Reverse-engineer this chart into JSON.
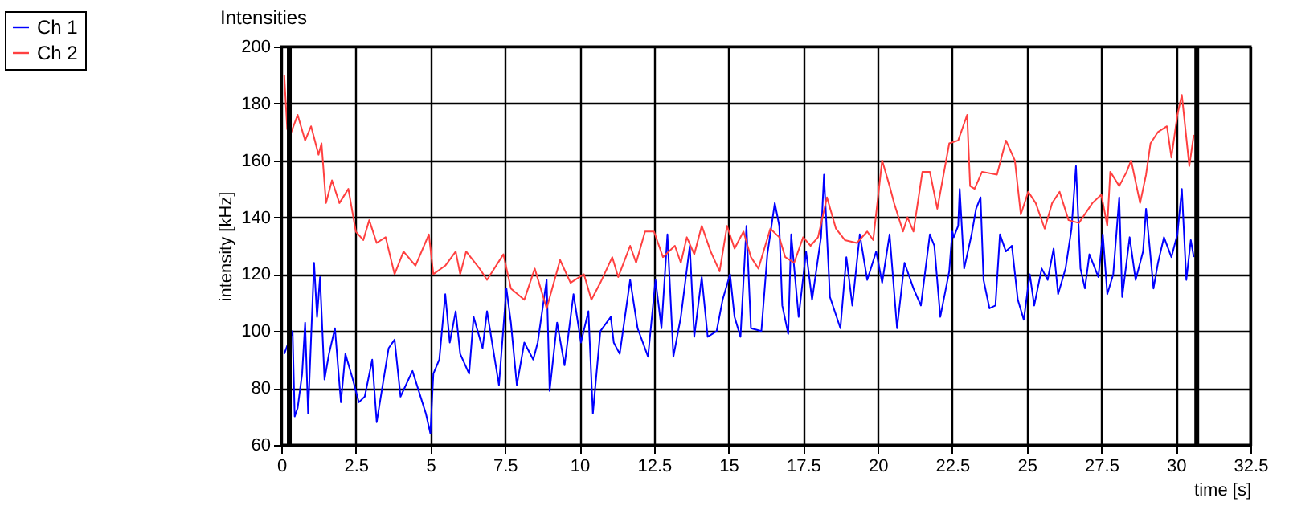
{
  "chart_data": {
    "type": "line",
    "title": "Intensities",
    "xlabel": "time [s]",
    "ylabel": "intensity [kHz]",
    "xlim": [
      0,
      32.5
    ],
    "ylim": [
      60,
      200
    ],
    "xticks": [
      0,
      2.5,
      5,
      7.5,
      10,
      12.5,
      15,
      17.5,
      20,
      22.5,
      25,
      27.5,
      30,
      32.5
    ],
    "yticks": [
      60,
      80,
      100,
      120,
      140,
      160,
      180,
      200
    ],
    "grid": true,
    "legend": "top left",
    "line_style": "solid",
    "ref_lines": [
      {
        "axis": "x",
        "value": 0.27,
        "color": "#000000"
      },
      {
        "axis": "x",
        "value": 30.7,
        "color": "#000000"
      }
    ],
    "series": [
      {
        "name": "Ch 1",
        "color": "#0000ff",
        "x": [
          0.1,
          0.38,
          0.45,
          0.55,
          0.7,
          0.8,
          0.9,
          1.1,
          1.2,
          1.3,
          1.45,
          1.6,
          1.8,
          2.0,
          2.15,
          2.4,
          2.6,
          2.8,
          3.05,
          3.2,
          3.6,
          3.8,
          4.0,
          4.4,
          4.85,
          5.0,
          5.1,
          5.3,
          5.5,
          5.65,
          5.85,
          6.0,
          6.3,
          6.45,
          6.75,
          6.9,
          7.3,
          7.55,
          7.7,
          7.9,
          8.15,
          8.45,
          8.6,
          8.9,
          9.0,
          9.25,
          9.5,
          9.8,
          10.05,
          10.3,
          10.45,
          10.7,
          11.05,
          11.15,
          11.35,
          11.7,
          11.95,
          12.3,
          12.55,
          12.75,
          12.95,
          13.15,
          13.4,
          13.7,
          13.85,
          14.1,
          14.3,
          14.6,
          14.8,
          15.05,
          15.2,
          15.4,
          15.6,
          15.75,
          16.1,
          16.3,
          16.55,
          16.7,
          16.8,
          17.0,
          17.1,
          17.35,
          17.6,
          17.8,
          18.1,
          18.2,
          18.4,
          18.75,
          18.95,
          19.15,
          19.4,
          19.65,
          19.95,
          20.15,
          20.4,
          20.65,
          20.9,
          21.2,
          21.45,
          21.75,
          21.9,
          22.1,
          22.4,
          22.5,
          22.55,
          22.7,
          22.75,
          22.9,
          23.15,
          23.3,
          23.45,
          23.55,
          23.75,
          23.95,
          24.1,
          24.3,
          24.5,
          24.7,
          24.9,
          25.1,
          25.25,
          25.5,
          25.7,
          25.9,
          26.05,
          26.3,
          26.5,
          26.65,
          26.8,
          26.95,
          27.1,
          27.4,
          27.55,
          27.7,
          27.9,
          28.1,
          28.2,
          28.45,
          28.65,
          28.9,
          29.0,
          29.25,
          29.4,
          29.6,
          29.85,
          30.05,
          30.2,
          30.35,
          30.5,
          30.6
        ],
        "values": [
          92,
          100,
          70,
          73,
          85,
          103,
          71,
          124,
          105,
          119,
          83,
          92,
          101,
          75,
          92,
          83,
          75,
          77,
          90,
          68,
          94,
          97,
          77,
          86,
          71,
          64,
          85,
          90,
          113,
          96,
          107,
          92,
          85,
          105,
          94,
          107,
          81,
          115,
          103,
          81,
          96,
          90,
          96,
          118,
          79,
          103,
          88,
          113,
          96,
          107,
          71,
          100,
          105,
          96,
          92,
          118,
          101,
          91,
          118,
          101,
          134,
          91,
          105,
          130,
          98,
          119,
          98,
          100,
          111,
          120,
          105,
          98,
          137,
          101,
          100,
          127,
          145,
          137,
          109,
          99,
          134,
          105,
          128,
          111,
          133,
          155,
          112,
          101,
          126,
          109,
          134,
          118,
          128,
          117,
          134,
          101,
          124,
          115,
          109,
          134,
          130,
          105,
          121,
          135,
          133,
          137,
          150,
          122,
          134,
          143,
          147,
          118,
          108,
          109,
          134,
          128,
          130,
          111,
          104,
          120,
          109,
          122,
          118,
          129,
          113,
          122,
          136,
          158,
          122,
          115,
          127,
          119,
          134,
          113,
          120,
          147,
          112,
          133,
          118,
          128,
          143,
          115,
          124,
          133,
          126,
          134,
          150,
          118,
          132,
          126
        ]
      },
      {
        "name": "Ch 2",
        "color": "#ff4040",
        "x": [
          0.1,
          0.2,
          0.3,
          0.55,
          0.8,
          1.0,
          1.25,
          1.35,
          1.5,
          1.7,
          1.95,
          2.25,
          2.5,
          2.75,
          2.95,
          3.2,
          3.5,
          3.8,
          4.1,
          4.5,
          4.95,
          5.1,
          5.5,
          5.85,
          6.0,
          6.2,
          6.65,
          6.9,
          7.45,
          7.7,
          8.15,
          8.5,
          8.9,
          9.35,
          9.7,
          10.15,
          10.4,
          10.7,
          11.1,
          11.3,
          11.7,
          11.9,
          12.2,
          12.5,
          12.8,
          13.2,
          13.4,
          13.6,
          13.85,
          14.1,
          14.4,
          14.7,
          14.95,
          15.2,
          15.5,
          15.75,
          16.0,
          16.4,
          16.7,
          16.9,
          17.2,
          17.5,
          17.75,
          18.0,
          18.3,
          18.6,
          18.9,
          19.3,
          19.65,
          19.85,
          20.15,
          20.4,
          20.55,
          20.85,
          21.0,
          21.2,
          21.5,
          21.75,
          22.0,
          22.4,
          22.7,
          23.0,
          23.1,
          23.25,
          23.5,
          24.0,
          24.3,
          24.6,
          24.8,
          25.05,
          25.3,
          25.6,
          25.85,
          26.1,
          26.4,
          26.75,
          27.2,
          27.5,
          27.7,
          27.8,
          28.1,
          28.35,
          28.5,
          28.8,
          29.0,
          29.15,
          29.4,
          29.7,
          29.85,
          30.05,
          30.2,
          30.45,
          30.6
        ],
        "values": [
          190,
          171,
          169,
          176,
          167,
          172,
          162,
          166,
          145,
          153,
          145,
          150,
          135,
          132,
          139,
          131,
          133,
          120,
          128,
          123,
          134,
          120,
          123,
          128,
          120,
          128,
          122,
          118,
          127,
          115,
          111,
          122,
          108,
          125,
          117,
          120,
          111,
          117,
          126,
          119,
          130,
          124,
          135,
          135,
          126,
          130,
          124,
          133,
          127,
          137,
          128,
          121,
          137,
          129,
          135,
          126,
          122,
          136,
          133,
          126,
          124,
          133,
          130,
          133,
          147,
          136,
          132,
          131,
          135,
          132,
          160,
          151,
          145,
          135,
          140,
          135,
          156,
          156,
          143,
          166,
          167,
          176,
          151,
          150,
          156,
          155,
          167,
          160,
          141,
          149,
          145,
          136,
          145,
          149,
          139,
          138,
          145,
          148,
          137,
          156,
          151,
          156,
          160,
          145,
          155,
          166,
          170,
          172,
          161,
          176,
          183,
          158,
          169
        ]
      }
    ]
  }
}
